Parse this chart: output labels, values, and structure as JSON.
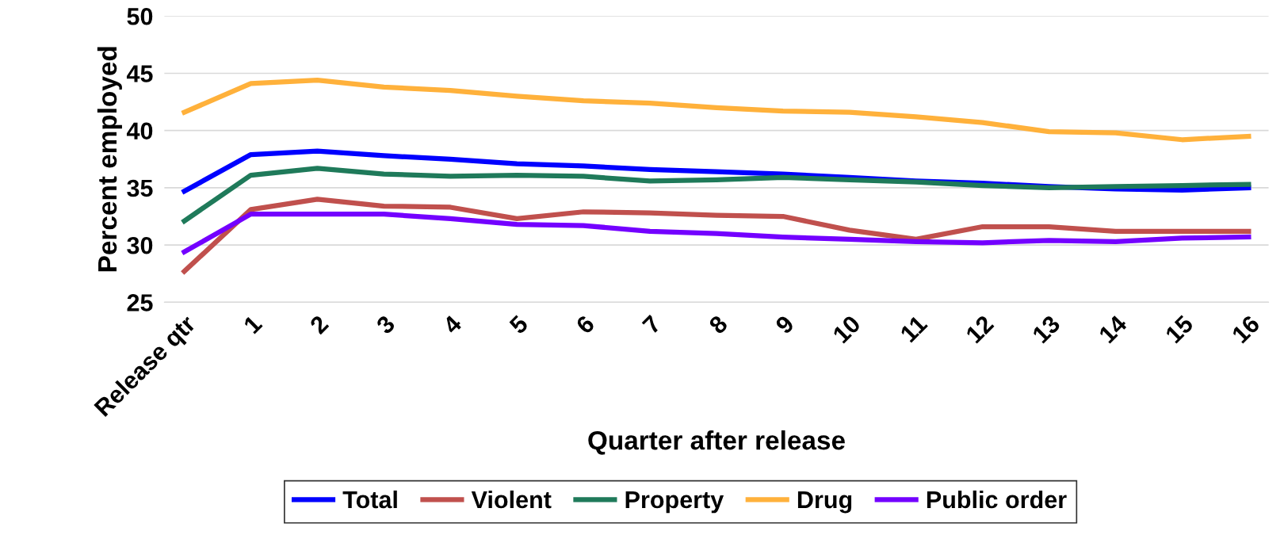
{
  "chart_data": {
    "type": "line",
    "xlabel": "Quarter after release",
    "ylabel": "Percent employed",
    "categories": [
      "Release qtr",
      "1",
      "2",
      "3",
      "4",
      "5",
      "6",
      "7",
      "8",
      "9",
      "10",
      "11",
      "12",
      "13",
      "14",
      "15",
      "16"
    ],
    "ylim": [
      25,
      50
    ],
    "yticks": [
      25,
      30,
      35,
      40,
      45,
      50
    ],
    "grid": "y",
    "legend": "bottom",
    "marker": "none",
    "line_style": "solid",
    "series": [
      {
        "name": "Total",
        "color": "#0000ff",
        "values": [
          34.7,
          37.9,
          38.2,
          37.8,
          37.5,
          37.1,
          36.9,
          36.6,
          36.4,
          36.2,
          35.9,
          35.6,
          35.4,
          35.1,
          34.9,
          34.8,
          35.0
        ]
      },
      {
        "name": "Violent",
        "color": "#c0504d",
        "values": [
          27.7,
          33.1,
          34.0,
          33.4,
          33.3,
          32.3,
          32.9,
          32.8,
          32.6,
          32.5,
          31.3,
          30.5,
          31.6,
          31.6,
          31.2,
          31.2,
          31.2
        ]
      },
      {
        "name": "Property",
        "color": "#1f7a5a",
        "values": [
          32.1,
          36.1,
          36.7,
          36.2,
          36.0,
          36.1,
          36.0,
          35.6,
          35.7,
          35.9,
          35.7,
          35.5,
          35.2,
          35.0,
          35.1,
          35.2,
          35.3
        ]
      },
      {
        "name": "Drug",
        "color": "#ffb13b",
        "values": [
          41.6,
          44.1,
          44.4,
          43.8,
          43.5,
          43.0,
          42.6,
          42.4,
          42.0,
          41.7,
          41.6,
          41.2,
          40.7,
          39.9,
          39.8,
          39.2,
          39.5
        ]
      },
      {
        "name": "Public order",
        "color": "#7300ff",
        "values": [
          29.4,
          32.7,
          32.7,
          32.7,
          32.3,
          31.8,
          31.7,
          31.2,
          31.0,
          30.7,
          30.5,
          30.3,
          30.2,
          30.4,
          30.3,
          30.6,
          30.7
        ]
      }
    ]
  }
}
